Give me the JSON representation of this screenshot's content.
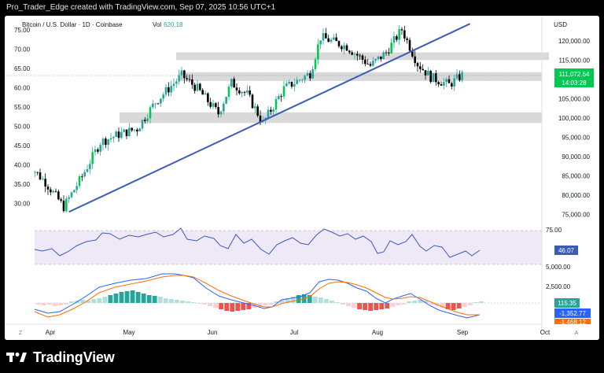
{
  "header": {
    "text": "Pro_Trader_Edge created with TradingView.com, Sep 07, 2025 10:56 UTC+1"
  },
  "footer": {
    "brand": "TradingView"
  },
  "chart": {
    "symbol": "Bitcoin / U.S. Dollar · 1D · Coinbase",
    "vol_label": "Vol",
    "vol_value": "620.18",
    "currency": "USD",
    "last_price": "111,072.64",
    "countdown": "14:03:28",
    "rsi_label": "46.07",
    "macd_hist_label": "115.35",
    "macd_line_label": "-1,352.77",
    "macd_signal_label": "-1,468.12",
    "left_axis_ticks": [
      "75.00",
      "70.00",
      "65.00",
      "60.00",
      "55.00",
      "50.00",
      "45.00",
      "40.00",
      "35.00",
      "30.00"
    ],
    "right_axis_ticks": [
      "120,000.00",
      "115,000.00",
      "110,000.00",
      "105,000.00",
      "100,000.00",
      "95,000.00",
      "90,000.00",
      "85,000.00",
      "80,000.00",
      "75,000.00"
    ],
    "rsi_axis_tick": "75.00",
    "macd_axis_ticks": [
      "5,000.00",
      "2,500.00"
    ],
    "time_ticks": [
      "Apr",
      "May",
      "Jun",
      "Jul",
      "Aug",
      "Sep",
      "Oct"
    ],
    "corner_left": "Z",
    "corner_right": "A",
    "colors": {
      "up": "#26a69a",
      "up_bright": "#00c853",
      "down": "#000000",
      "trendline": "#3b5bb8",
      "rsi": "#3b5bb8",
      "macd": "#2962ff",
      "signal": "#ff6d00",
      "rsi_band": "#ede7f6",
      "zone": "#d9d9d9"
    }
  },
  "chart_data": {
    "type": "candlestick",
    "title": "Bitcoin / U.S. Dollar · 1D · Coinbase",
    "y_range": [
      72000,
      124000
    ],
    "support_resistance_zones": [
      [
        115000,
        117000
      ],
      [
        109500,
        111800
      ],
      [
        98500,
        101300
      ]
    ],
    "trendline": [
      {
        "date": "2025-04-09",
        "price": 75200
      },
      {
        "date": "2025-09-09",
        "price": 124500
      }
    ],
    "anchors": [
      [
        "2025-03-24",
        88000
      ],
      [
        "2025-03-31",
        83000
      ],
      [
        "2025-04-07",
        76500
      ],
      [
        "2025-04-14",
        84500
      ],
      [
        "2025-04-21",
        93500
      ],
      [
        "2025-04-28",
        95500
      ],
      [
        "2025-05-05",
        97000
      ],
      [
        "2025-05-12",
        104000
      ],
      [
        "2025-05-22",
        111000
      ],
      [
        "2025-05-28",
        107500
      ],
      [
        "2025-06-05",
        101000
      ],
      [
        "2025-06-10",
        109000
      ],
      [
        "2025-06-16",
        106000
      ],
      [
        "2025-06-22",
        98500
      ],
      [
        "2025-06-30",
        107500
      ],
      [
        "2025-07-10",
        111500
      ],
      [
        "2025-07-14",
        121000
      ],
      [
        "2025-07-24",
        118500
      ],
      [
        "2025-08-02",
        113500
      ],
      [
        "2025-08-08",
        117000
      ],
      [
        "2025-08-14",
        123000
      ],
      [
        "2025-08-20",
        114000
      ],
      [
        "2025-08-25",
        110500
      ],
      [
        "2025-09-01",
        108500
      ],
      [
        "2025-09-06",
        111072
      ]
    ],
    "indicators": {
      "rsi": 46.07,
      "macd_histogram": 115.35,
      "macd": -1352.77,
      "macd_signal": -1468.12
    }
  }
}
